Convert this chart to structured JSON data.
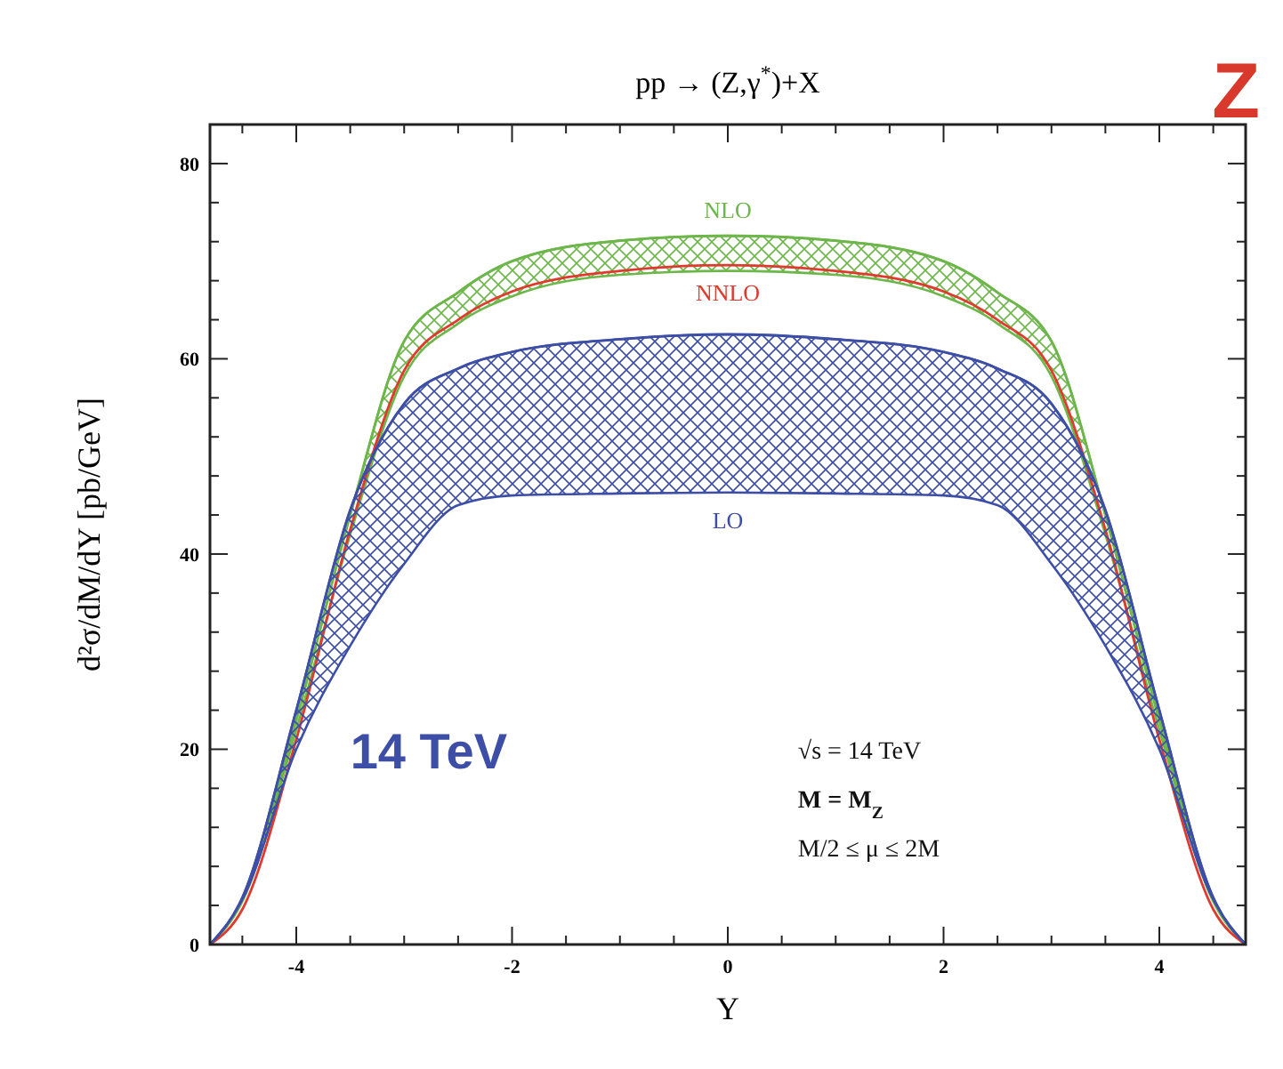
{
  "chart_data": {
    "type": "line",
    "title": "pp → (Z,γ$^{*}$)+X",
    "xlabel": "Y",
    "ylabel": "d²σ/dM/dY [pb/GeV]",
    "x": [
      -4.8,
      -4.5,
      -4,
      -3.5,
      -3,
      -2.5,
      -2,
      -1,
      0,
      1,
      2,
      2.5,
      3,
      3.5,
      4,
      4.5,
      4.8
    ],
    "series": [
      {
        "name": "NLO",
        "color": "#6cb64a",
        "values": [
          0,
          4.6,
          23,
          44,
          61.8,
          66.8,
          70,
          72.1,
          72.6,
          72.1,
          70,
          66.8,
          61.8,
          44,
          23,
          4.6,
          0
        ],
        "upper": [
          0,
          4.6,
          23,
          44,
          61.8,
          66.8,
          70,
          72.1,
          72.6,
          72.1,
          70,
          66.8,
          61.8,
          44,
          23,
          4.6,
          0
        ],
        "lower": [
          0,
          4.4,
          22,
          42,
          58.2,
          63.6,
          66.4,
          68.6,
          69,
          68.6,
          66.4,
          63.6,
          58.2,
          42,
          22,
          4.4,
          0
        ]
      },
      {
        "name": "NNLO",
        "color": "#e0392e",
        "values": [
          0,
          3.6,
          21,
          42.5,
          58.8,
          64,
          66.9,
          69,
          69.6,
          69,
          66.9,
          64,
          58.8,
          42.5,
          21,
          3.6,
          0
        ]
      },
      {
        "name": "LO",
        "color": "#3d4ea6",
        "values": [
          0,
          4.8,
          24,
          44.5,
          55.4,
          59,
          60.7,
          62,
          62.5,
          62,
          60.7,
          59,
          55.4,
          44.5,
          24,
          4.8,
          0
        ],
        "upper": [
          0,
          4.8,
          24,
          44.5,
          55.4,
          59,
          60.7,
          62,
          62.5,
          62,
          60.7,
          59,
          55.4,
          44.5,
          24,
          4.8,
          0
        ],
        "lower": [
          0,
          4.6,
          20,
          30.6,
          39,
          45,
          46,
          46.2,
          46.3,
          46.2,
          46,
          45,
          39,
          30.6,
          20,
          4.6,
          0
        ]
      }
    ],
    "xlim": [
      -4.8,
      4.8
    ],
    "ylim": [
      0,
      84
    ],
    "xticks": [
      {
        "value": -4.5,
        "label": null
      },
      -4,
      {
        "value": -3.5,
        "label": null
      },
      {
        "value": -3,
        "label": null
      },
      {
        "value": -2.5,
        "label": null
      },
      -2,
      {
        "value": -1.5,
        "label": null
      },
      {
        "value": -1,
        "label": null
      },
      {
        "value": -0.5,
        "label": null
      },
      0,
      {
        "value": 0.5,
        "label": null
      },
      {
        "value": 1,
        "label": null
      },
      {
        "value": 1.5,
        "label": null
      },
      2,
      {
        "value": 2.5,
        "label": null
      },
      {
        "value": 3,
        "label": null
      },
      {
        "value": 3.5,
        "label": null
      },
      4,
      {
        "value": 4.5,
        "label": null
      }
    ],
    "yticks": [
      0,
      {
        "value": 4,
        "label": null
      },
      {
        "value": 8,
        "label": null
      },
      {
        "value": 12,
        "label": null
      },
      {
        "value": 16,
        "label": null
      },
      20,
      {
        "value": 24,
        "label": null
      },
      {
        "value": 28,
        "label": null
      },
      {
        "value": 32,
        "label": null
      },
      {
        "value": 36,
        "label": null
      },
      40,
      {
        "value": 44,
        "label": null
      },
      {
        "value": 48,
        "label": null
      },
      {
        "value": 52,
        "label": null
      },
      {
        "value": 56,
        "label": null
      },
      60,
      {
        "value": 64,
        "label": null
      },
      {
        "value": 68,
        "label": null
      },
      {
        "value": 72,
        "label": null
      },
      {
        "value": 76,
        "label": null
      },
      80
    ],
    "annotations": [
      "Z",
      "14 TeV",
      "√s = 14 TeV",
      "M = M$_{Z}$",
      "M/2 ≤ μ ≤ 2M"
    ]
  }
}
